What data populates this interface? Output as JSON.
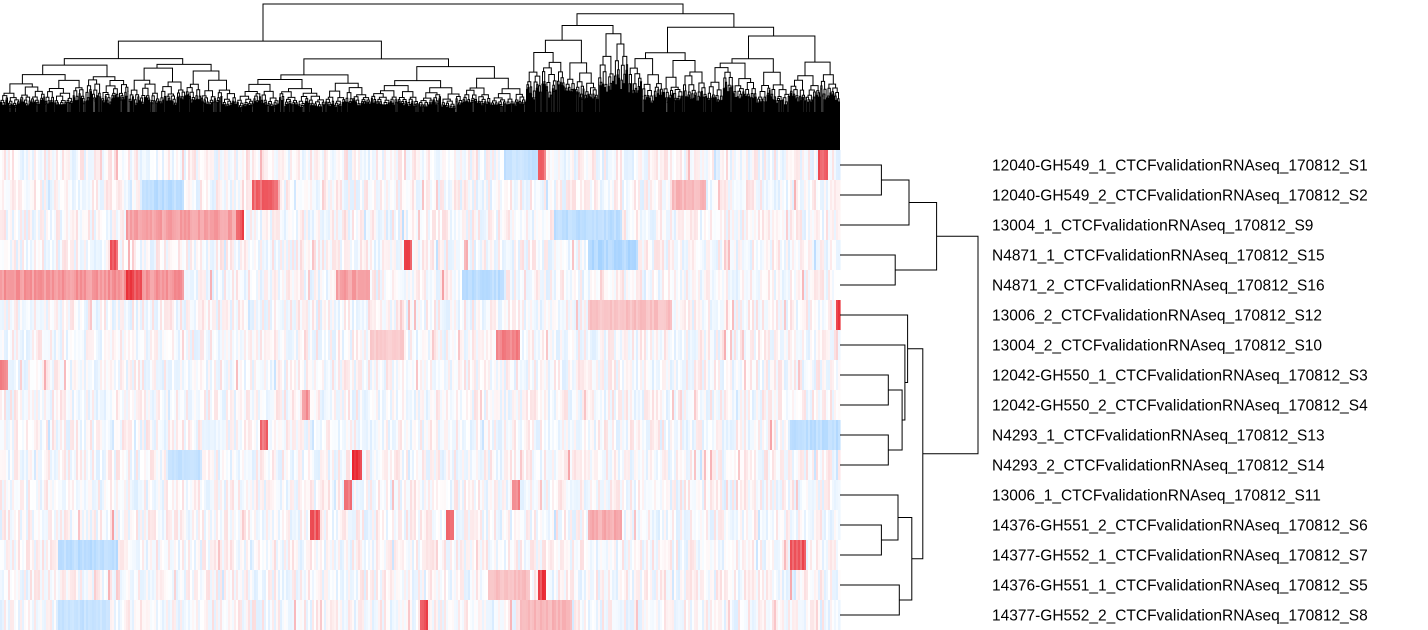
{
  "chart_data": {
    "type": "heatmap",
    "rows": [
      "12040-GH549_1_CTCFvalidationRNAseq_170812_S1",
      "12040-GH549_2_CTCFvalidationRNAseq_170812_S2",
      "13004_1_CTCFvalidationRNAseq_170812_S9",
      "N4871_1_CTCFvalidationRNAseq_170812_S15",
      "N4871_2_CTCFvalidationRNAseq_170812_S16",
      "13006_2_CTCFvalidationRNAseq_170812_S12",
      "13004_2_CTCFvalidationRNAseq_170812_S10",
      "12042-GH550_1_CTCFvalidationRNAseq_170812_S3",
      "12042-GH550_2_CTCFvalidationRNAseq_170812_S4",
      "N4293_1_CTCFvalidationRNAseq_170812_S13",
      "N4293_2_CTCFvalidationRNAseq_170812_S14",
      "13006_1_CTCFvalidationRNAseq_170812_S11",
      "14376-GH551_2_CTCFvalidationRNAseq_170812_S6",
      "14377-GH552_1_CTCFvalidationRNAseq_170812_S7",
      "14376-GH551_1_CTCFvalidationRNAseq_170812_S5",
      "14377-GH552_2_CTCFvalidationRNAseq_170812_S8"
    ],
    "row_dendrogram": {
      "leaf_order": [
        0,
        1,
        2,
        3,
        4,
        5,
        6,
        7,
        8,
        9,
        10,
        11,
        12,
        13,
        14,
        15
      ],
      "merges": [
        {
          "a": "L0",
          "b": "L1",
          "height": 0.3
        },
        {
          "a": "C0",
          "b": "L2",
          "height": 0.5
        },
        {
          "a": "L3",
          "b": "L4",
          "height": 0.4
        },
        {
          "a": "C1",
          "b": "C2",
          "height": 0.7
        },
        {
          "a": "L7",
          "b": "L8",
          "height": 0.35
        },
        {
          "a": "L9",
          "b": "L10",
          "height": 0.35
        },
        {
          "a": "C4",
          "b": "C5",
          "height": 0.45
        },
        {
          "a": "L6",
          "b": "C6",
          "height": 0.47
        },
        {
          "a": "L5",
          "b": "C7",
          "height": 0.49
        },
        {
          "a": "L12",
          "b": "L13",
          "height": 0.3
        },
        {
          "a": "L11",
          "b": "C9",
          "height": 0.42
        },
        {
          "a": "L14",
          "b": "L15",
          "height": 0.43
        },
        {
          "a": "C10",
          "b": "C11",
          "height": 0.52
        },
        {
          "a": "C8",
          "b": "C12",
          "height": 0.6
        },
        {
          "a": "C3",
          "b": "C13",
          "height": 1.0
        }
      ]
    },
    "column_dendrogram": {
      "leaves": "many",
      "shown": true
    },
    "color_scale": {
      "low": "#3399ff",
      "mid": "#ffffff",
      "high": "#e8202a"
    },
    "n_columns": 420,
    "color_features": [
      {
        "row": 0,
        "at": 0.64,
        "width": 0.01,
        "value": 0.7
      },
      {
        "row": 0,
        "at": 0.975,
        "width": 0.01,
        "value": 0.75
      },
      {
        "row": 0,
        "at": 0.6,
        "width": 0.04,
        "value": -0.3
      },
      {
        "row": 1,
        "at": 0.3,
        "width": 0.03,
        "value": 0.75
      },
      {
        "row": 1,
        "at": 0.17,
        "width": 0.05,
        "value": -0.35
      },
      {
        "row": 1,
        "at": 0.8,
        "width": 0.04,
        "value": 0.35
      },
      {
        "row": 2,
        "at": 0.15,
        "width": 0.14,
        "value": 0.45
      },
      {
        "row": 2,
        "at": 0.28,
        "width": 0.01,
        "value": 0.8
      },
      {
        "row": 2,
        "at": 0.66,
        "width": 0.08,
        "value": -0.35
      },
      {
        "row": 3,
        "at": 0.13,
        "width": 0.01,
        "value": 0.8
      },
      {
        "row": 3,
        "at": 0.48,
        "width": 0.01,
        "value": 0.85
      },
      {
        "row": 3,
        "at": 0.7,
        "width": 0.06,
        "value": -0.4
      },
      {
        "row": 4,
        "at": 0.0,
        "width": 0.22,
        "value": 0.5
      },
      {
        "row": 4,
        "at": 0.15,
        "width": 0.02,
        "value": 0.9
      },
      {
        "row": 4,
        "at": 0.4,
        "width": 0.04,
        "value": 0.45
      },
      {
        "row": 4,
        "at": 0.55,
        "width": 0.05,
        "value": -0.35
      },
      {
        "row": 5,
        "at": 0.995,
        "width": 0.006,
        "value": 0.9
      },
      {
        "row": 5,
        "at": 0.7,
        "width": 0.1,
        "value": 0.3
      },
      {
        "row": 6,
        "at": 0.59,
        "width": 0.03,
        "value": 0.6
      },
      {
        "row": 6,
        "at": 0.44,
        "width": 0.04,
        "value": 0.25
      },
      {
        "row": 7,
        "at": 0.0,
        "width": 0.01,
        "value": 0.6
      },
      {
        "row": 8,
        "at": 0.36,
        "width": 0.01,
        "value": 0.5
      },
      {
        "row": 9,
        "at": 0.31,
        "width": 0.01,
        "value": 0.7
      },
      {
        "row": 9,
        "at": 0.94,
        "width": 0.06,
        "value": -0.35
      },
      {
        "row": 10,
        "at": 0.42,
        "width": 0.01,
        "value": 0.9
      },
      {
        "row": 10,
        "at": 0.2,
        "width": 0.04,
        "value": -0.3
      },
      {
        "row": 11,
        "at": 0.41,
        "width": 0.01,
        "value": 0.7
      },
      {
        "row": 11,
        "at": 0.61,
        "width": 0.01,
        "value": 0.6
      },
      {
        "row": 12,
        "at": 0.37,
        "width": 0.01,
        "value": 0.8
      },
      {
        "row": 12,
        "at": 0.53,
        "width": 0.01,
        "value": 0.7
      },
      {
        "row": 12,
        "at": 0.7,
        "width": 0.04,
        "value": 0.4
      },
      {
        "row": 13,
        "at": 0.94,
        "width": 0.02,
        "value": 0.8
      },
      {
        "row": 13,
        "at": 0.07,
        "width": 0.07,
        "value": -0.35
      },
      {
        "row": 14,
        "at": 0.64,
        "width": 0.01,
        "value": 0.9
      },
      {
        "row": 14,
        "at": 0.58,
        "width": 0.05,
        "value": 0.3
      },
      {
        "row": 15,
        "at": 0.5,
        "width": 0.01,
        "value": 0.85
      },
      {
        "row": 15,
        "at": 0.62,
        "width": 0.06,
        "value": 0.35
      },
      {
        "row": 15,
        "at": 0.07,
        "width": 0.06,
        "value": -0.3
      }
    ],
    "title": "",
    "xlabel": "",
    "ylabel": "",
    "legend": "none"
  }
}
